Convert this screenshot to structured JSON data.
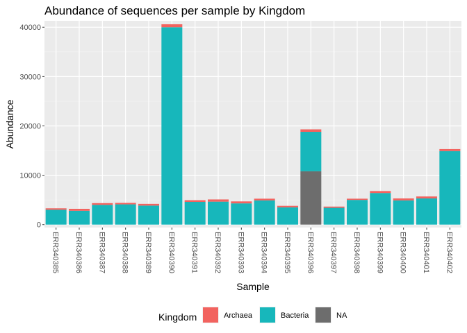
{
  "chart_data": {
    "type": "bar",
    "stacked": true,
    "title": "Abundance of sequences per sample by Kingdom",
    "xlabel": "Sample",
    "ylabel": "Abundance",
    "ylim": [
      -600,
      41300
    ],
    "yticks": [
      0,
      10000,
      20000,
      30000,
      40000
    ],
    "grid": true,
    "legend_position": "bottom",
    "legend_title": "Kingdom",
    "categories": [
      "ERR340385",
      "ERR340386",
      "ERR340387",
      "ERR340388",
      "ERR340389",
      "ERR340390",
      "ERR340391",
      "ERR340392",
      "ERR340393",
      "ERR340394",
      "ERR340395",
      "ERR340396",
      "ERR340397",
      "ERR340398",
      "ERR340399",
      "ERR340400",
      "ERR340401",
      "ERR340402"
    ],
    "series": [
      {
        "name": "NA",
        "color": "#6d6d6d",
        "values": [
          0,
          0,
          0,
          0,
          0,
          0,
          0,
          0,
          0,
          0,
          0,
          10800,
          0,
          0,
          0,
          0,
          0,
          0
        ]
      },
      {
        "name": "Bacteria",
        "color": "#17b7bb",
        "values": [
          3000,
          2800,
          4000,
          4100,
          3850,
          40000,
          4600,
          4650,
          4300,
          4900,
          3500,
          8000,
          3400,
          5000,
          6400,
          4900,
          5300,
          14900
        ]
      },
      {
        "name": "Archaea",
        "color": "#f2635f",
        "values": [
          300,
          400,
          350,
          300,
          350,
          600,
          350,
          450,
          400,
          350,
          300,
          500,
          250,
          250,
          400,
          400,
          400,
          400
        ]
      }
    ],
    "legend_order": [
      "Archaea",
      "Bacteria",
      "NA"
    ]
  }
}
